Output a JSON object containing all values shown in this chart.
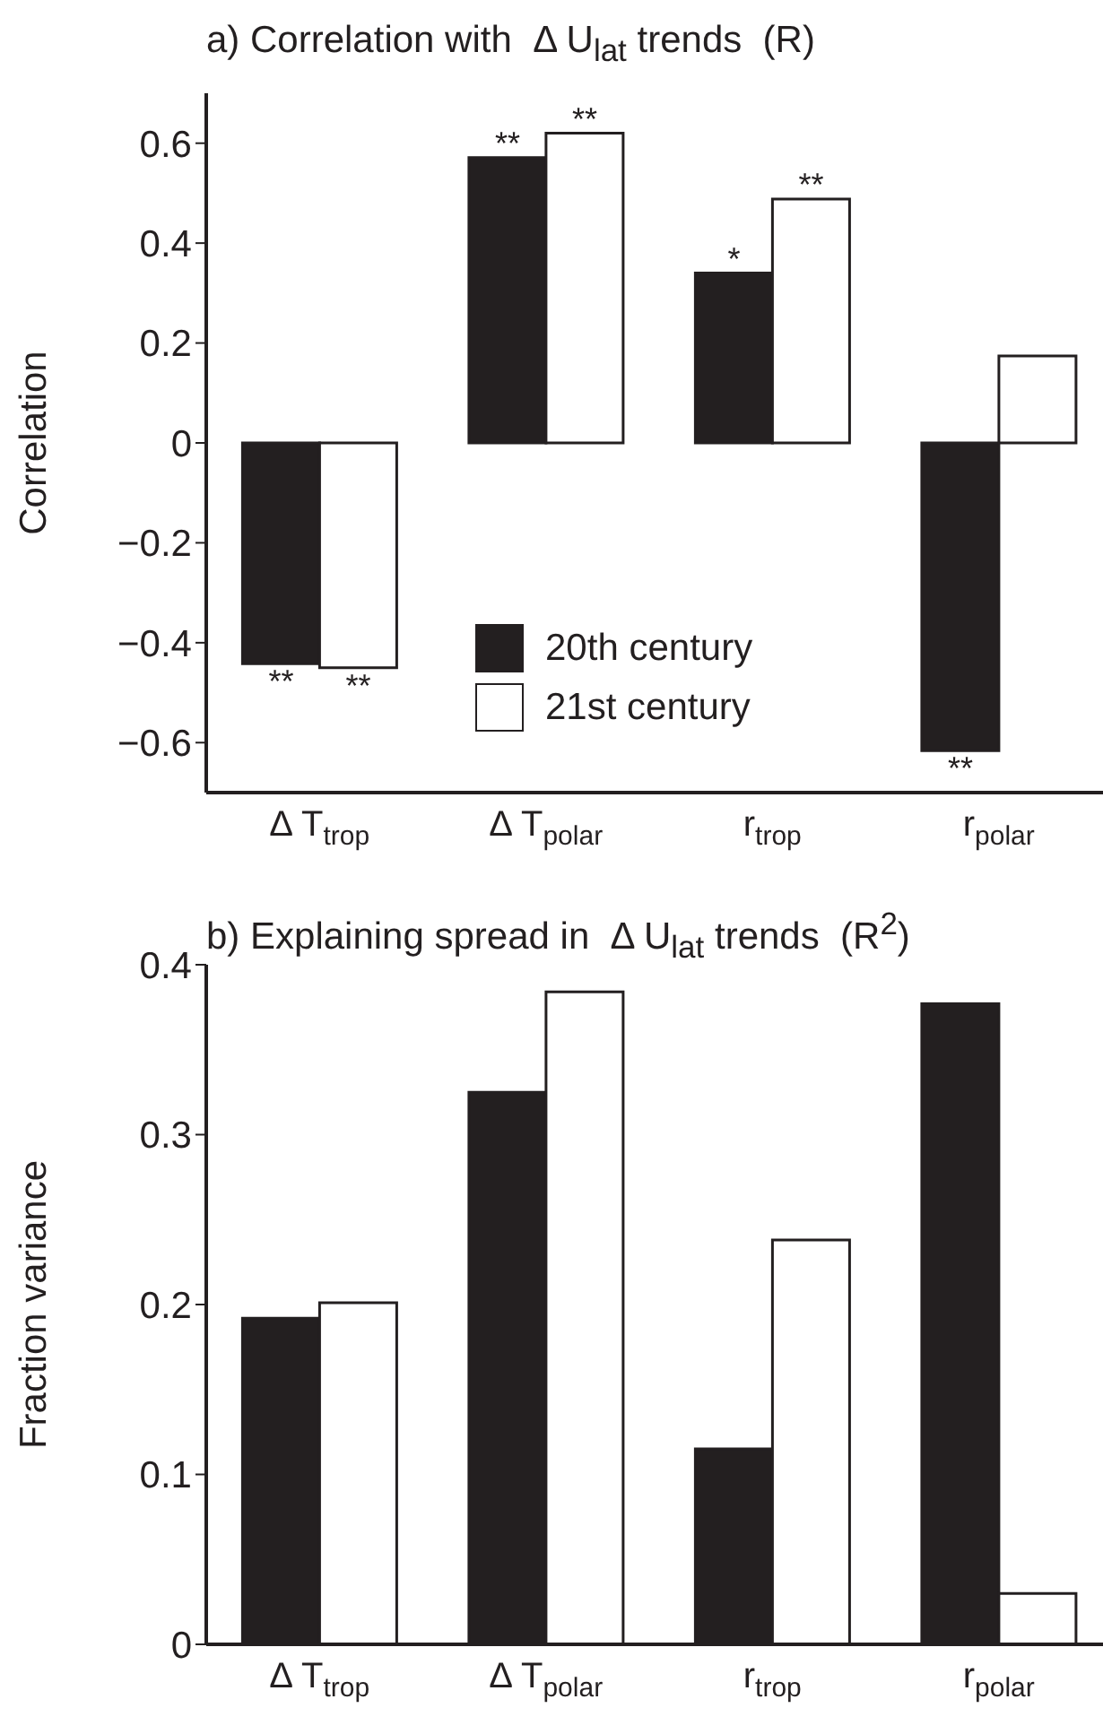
{
  "chart_data": [
    {
      "type": "bar",
      "title": "a) Correlation with  Δ U$_{lat}$ trends  (R)",
      "ylabel": "Correlation",
      "categories": [
        "Δ T$_{trop}$",
        "Δ T$_{polar}$",
        "r$_{trop}$",
        "r$_{polar}$"
      ],
      "series": [
        {
          "name": "20th century",
          "color": "#231f20",
          "values": [
            -0.442,
            0.571,
            0.34,
            -0.616
          ]
        },
        {
          "name": "21st century",
          "color": "#ffffff",
          "values": [
            -0.45,
            0.62,
            0.488,
            0.174
          ]
        }
      ],
      "ylim": [
        -0.7,
        0.7
      ],
      "yticks": [
        -0.6,
        -0.4,
        -0.2,
        0,
        0.2,
        0.4,
        0.6
      ],
      "grid": false,
      "legend": "bottom",
      "annotations": [
        {
          "text": "**",
          "x": "Δ T$_{trop}$",
          "y": -0.442
        },
        {
          "text": "**",
          "x": "Δ T$_{trop}$",
          "y": -0.45
        },
        {
          "text": "**",
          "x": "Δ T$_{polar}$",
          "y": 0.571
        },
        {
          "text": "**",
          "x": "Δ T$_{polar}$",
          "y": 0.62
        },
        {
          "text": "*",
          "x": "r$_{trop}$",
          "y": 0.34
        },
        {
          "text": "**",
          "x": "r$_{trop}$",
          "y": 0.488
        },
        {
          "text": "**",
          "x": "r$_{polar}$",
          "y": -0.616
        }
      ]
    },
    {
      "type": "bar",
      "title": "b) Explaining spread in  Δ U$_{lat}$ trends  (R$^{2}$)",
      "ylabel": "Fraction variance",
      "categories": [
        "Δ T$_{trop}$",
        "Δ T$_{polar}$",
        "r$_{trop}$",
        "r$_{polar}$"
      ],
      "series": [
        {
          "color": "#231f20",
          "values": [
            0.192,
            0.325,
            0.115,
            0.377
          ]
        },
        {
          "color": "#ffffff",
          "values": [
            0.201,
            0.384,
            0.238,
            0.03
          ]
        }
      ],
      "ylim": [
        0,
        0.4
      ],
      "yticks": [
        0,
        0.1,
        0.2,
        0.3,
        0.4
      ],
      "grid": false,
      "legend": false
    }
  ]
}
